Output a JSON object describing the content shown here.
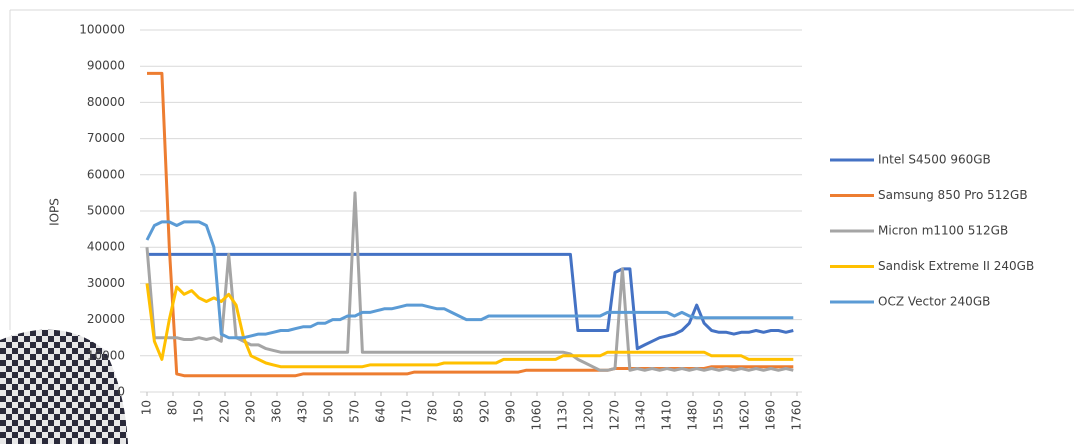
{
  "chart_data": {
    "type": "line",
    "y_label": "IOPS",
    "x": [
      10,
      30,
      50,
      70,
      90,
      110,
      130,
      150,
      170,
      190,
      210,
      230,
      250,
      270,
      290,
      310,
      330,
      350,
      370,
      390,
      410,
      430,
      450,
      470,
      490,
      510,
      530,
      550,
      570,
      590,
      610,
      630,
      650,
      670,
      690,
      710,
      730,
      750,
      770,
      790,
      810,
      830,
      850,
      870,
      890,
      910,
      930,
      950,
      970,
      990,
      1010,
      1030,
      1050,
      1070,
      1090,
      1110,
      1130,
      1150,
      1170,
      1190,
      1210,
      1230,
      1250,
      1270,
      1290,
      1310,
      1330,
      1350,
      1370,
      1390,
      1410,
      1430,
      1450,
      1470,
      1490,
      1510,
      1530,
      1550,
      1570,
      1590,
      1610,
      1630,
      1650,
      1670,
      1690,
      1710,
      1730,
      1750
    ],
    "xlim": [
      10,
      1760
    ],
    "xticks": [
      10,
      80,
      150,
      220,
      290,
      360,
      430,
      500,
      570,
      640,
      710,
      780,
      850,
      920,
      990,
      1060,
      1130,
      1200,
      1270,
      1340,
      1410,
      1480,
      1550,
      1620,
      1690,
      1760
    ],
    "ylim": [
      0,
      100000
    ],
    "yticks": [
      0,
      10000,
      20000,
      30000,
      40000,
      50000,
      60000,
      70000,
      80000,
      90000,
      100000
    ],
    "grid": true,
    "legend": "right",
    "series": [
      {
        "name": "Intel S4500 960GB",
        "color": "#4472c4",
        "values": [
          38000,
          38000,
          38000,
          38000,
          38000,
          38000,
          38000,
          38000,
          38000,
          38000,
          38000,
          38000,
          38000,
          38000,
          38000,
          38000,
          38000,
          38000,
          38000,
          38000,
          38000,
          38000,
          38000,
          38000,
          38000,
          38000,
          38000,
          38000,
          38000,
          38000,
          38000,
          38000,
          38000,
          38000,
          38000,
          38000,
          38000,
          38000,
          38000,
          38000,
          38000,
          38000,
          38000,
          38000,
          38000,
          38000,
          38000,
          38000,
          38000,
          38000,
          38000,
          38000,
          38000,
          38000,
          38000,
          38000,
          38000,
          38000,
          17000,
          17000,
          17000,
          17000,
          17000,
          33000,
          34000,
          34000,
          12000,
          13000,
          14000,
          15000,
          15500,
          16000,
          17000,
          19000,
          24000,
          19000,
          17000,
          16500,
          16500,
          16000,
          16500,
          16500,
          17000,
          16500,
          17000,
          17000,
          16500,
          17000
        ]
      },
      {
        "name": "Samsung 850 Pro 512GB",
        "color": "#ed7d31",
        "values": [
          88000,
          88000,
          88000,
          40000,
          5000,
          4500,
          4500,
          4500,
          4500,
          4500,
          4500,
          4500,
          4500,
          4500,
          4500,
          4500,
          4500,
          4500,
          4500,
          4500,
          4500,
          5000,
          5000,
          5000,
          5000,
          5000,
          5000,
          5000,
          5000,
          5000,
          5000,
          5000,
          5000,
          5000,
          5000,
          5000,
          5500,
          5500,
          5500,
          5500,
          5500,
          5500,
          5500,
          5500,
          5500,
          5500,
          5500,
          5500,
          5500,
          5500,
          5500,
          6000,
          6000,
          6000,
          6000,
          6000,
          6000,
          6000,
          6000,
          6000,
          6000,
          6000,
          6000,
          6500,
          6500,
          6500,
          6500,
          6500,
          6500,
          6500,
          6500,
          6500,
          6500,
          6500,
          6500,
          6500,
          7000,
          7000,
          7000,
          7000,
          7000,
          7000,
          7000,
          7000,
          7000,
          7000,
          7000,
          7000
        ]
      },
      {
        "name": "Micron m1100 512GB",
        "color": "#a5a5a5",
        "values": [
          40000,
          15000,
          15000,
          15000,
          15000,
          14500,
          14500,
          15000,
          14500,
          15000,
          14000,
          38000,
          15000,
          14000,
          13000,
          13000,
          12000,
          11500,
          11000,
          11000,
          11000,
          11000,
          11000,
          11000,
          11000,
          11000,
          11000,
          11000,
          55000,
          11000,
          11000,
          11000,
          11000,
          11000,
          11000,
          11000,
          11000,
          11000,
          11000,
          11000,
          11000,
          11000,
          11000,
          11000,
          11000,
          11000,
          11000,
          11000,
          11000,
          11000,
          11000,
          11000,
          11000,
          11000,
          11000,
          11000,
          11000,
          10500,
          9000,
          8000,
          7000,
          6000,
          6000,
          6500,
          34000,
          6000,
          6500,
          6000,
          6500,
          6000,
          6500,
          6000,
          6500,
          6000,
          6500,
          6000,
          6500,
          6000,
          6500,
          6000,
          6500,
          6000,
          6500,
          6000,
          6500,
          6000,
          6500,
          6000
        ]
      },
      {
        "name": "Sandisk Extreme II 240GB",
        "color": "#ffc000",
        "values": [
          30000,
          14000,
          9000,
          20000,
          29000,
          27000,
          28000,
          26000,
          25000,
          26000,
          25000,
          27000,
          24000,
          15000,
          10000,
          9000,
          8000,
          7500,
          7000,
          7000,
          7000,
          7000,
          7000,
          7000,
          7000,
          7000,
          7000,
          7000,
          7000,
          7000,
          7500,
          7500,
          7500,
          7500,
          7500,
          7500,
          7500,
          7500,
          7500,
          7500,
          8000,
          8000,
          8000,
          8000,
          8000,
          8000,
          8000,
          8000,
          9000,
          9000,
          9000,
          9000,
          9000,
          9000,
          9000,
          9000,
          10000,
          10000,
          10000,
          10000,
          10000,
          10000,
          11000,
          11000,
          11000,
          11000,
          11000,
          11000,
          11000,
          11000,
          11000,
          11000,
          11000,
          11000,
          11000,
          11000,
          10000,
          10000,
          10000,
          10000,
          10000,
          9000,
          9000,
          9000,
          9000,
          9000,
          9000,
          9000
        ]
      },
      {
        "name": "OCZ Vector 240GB",
        "color": "#5b9bd5",
        "values": [
          42000,
          46000,
          47000,
          47000,
          46000,
          47000,
          47000,
          47000,
          46000,
          40000,
          16000,
          15000,
          15000,
          15000,
          15500,
          16000,
          16000,
          16500,
          17000,
          17000,
          17500,
          18000,
          18000,
          19000,
          19000,
          20000,
          20000,
          21000,
          21000,
          22000,
          22000,
          22500,
          23000,
          23000,
          23500,
          24000,
          24000,
          24000,
          23500,
          23000,
          23000,
          22000,
          21000,
          20000,
          20000,
          20000,
          21000,
          21000,
          21000,
          21000,
          21000,
          21000,
          21000,
          21000,
          21000,
          21000,
          21000,
          21000,
          21000,
          21000,
          21000,
          21000,
          22000,
          22000,
          22000,
          22000,
          22000,
          22000,
          22000,
          22000,
          22000,
          21000,
          22000,
          21000,
          20500,
          20500,
          20500,
          20500,
          20500,
          20500,
          20500,
          20500,
          20500,
          20500,
          20500,
          20500,
          20500,
          20500
        ]
      }
    ]
  }
}
